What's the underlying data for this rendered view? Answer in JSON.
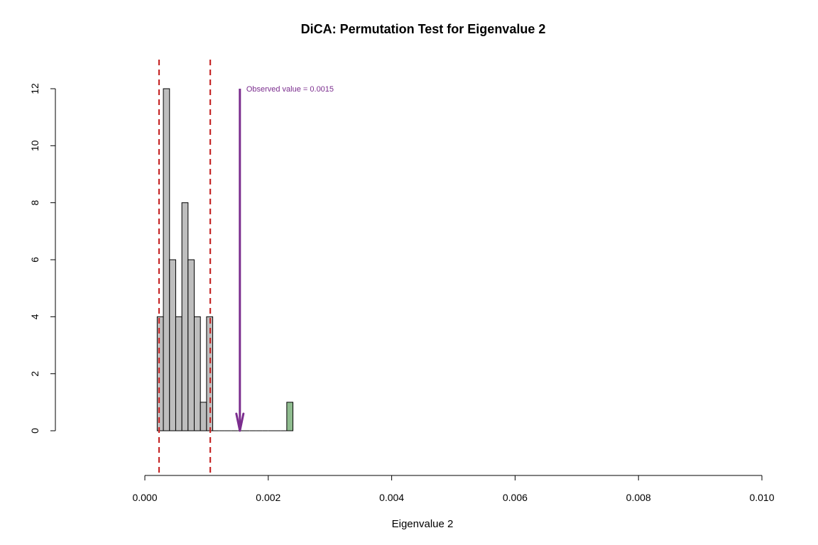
{
  "chart_data": {
    "type": "bar",
    "title": "DiCA: Permutation Test for Eigenvalue 2",
    "xlabel": "Eigenvalue 2",
    "ylabel": "",
    "xlim": [
      0,
      0.01
    ],
    "ylim": [
      0,
      12
    ],
    "x_ticks": [
      "0.000",
      "0.002",
      "0.004",
      "0.006",
      "0.008",
      "0.010"
    ],
    "y_ticks": [
      "0",
      "2",
      "4",
      "6",
      "8",
      "10",
      "12"
    ],
    "bin_width": 0.0001,
    "bins": [
      {
        "x0": 0.0002,
        "x1": 0.0003,
        "count": 4
      },
      {
        "x0": 0.0003,
        "x1": 0.0004,
        "count": 12
      },
      {
        "x0": 0.0004,
        "x1": 0.0005,
        "count": 6
      },
      {
        "x0": 0.0005,
        "x1": 0.0006,
        "count": 4
      },
      {
        "x0": 0.0006,
        "x1": 0.0007,
        "count": 8
      },
      {
        "x0": 0.0007,
        "x1": 0.0008,
        "count": 6
      },
      {
        "x0": 0.0008,
        "x1": 0.0009,
        "count": 4
      },
      {
        "x0": 0.0009,
        "x1": 0.001,
        "count": 1
      },
      {
        "x0": 0.001,
        "x1": 0.0011,
        "count": 4
      },
      {
        "x0": 0.0011,
        "x1": 0.0012,
        "count": 0
      },
      {
        "x0": 0.0012,
        "x1": 0.0013,
        "count": 0
      },
      {
        "x0": 0.0013,
        "x1": 0.0014,
        "count": 0
      },
      {
        "x0": 0.0014,
        "x1": 0.0015,
        "count": 0
      },
      {
        "x0": 0.0015,
        "x1": 0.0016,
        "count": 0
      },
      {
        "x0": 0.0016,
        "x1": 0.0017,
        "count": 0
      },
      {
        "x0": 0.0017,
        "x1": 0.0018,
        "count": 0
      },
      {
        "x0": 0.0018,
        "x1": 0.0019,
        "count": 0
      },
      {
        "x0": 0.0019,
        "x1": 0.002,
        "count": 0
      },
      {
        "x0": 0.002,
        "x1": 0.0021,
        "count": 0
      },
      {
        "x0": 0.0021,
        "x1": 0.0022,
        "count": 0
      },
      {
        "x0": 0.0022,
        "x1": 0.0023,
        "count": 0
      },
      {
        "x0": 0.0023,
        "x1": 0.0024,
        "count": 1,
        "highlight": true
      }
    ],
    "critical_lines": [
      0.00023,
      0.00106
    ],
    "observed": {
      "value": 0.00154,
      "label": "Observed value = 0.0015"
    },
    "colors": {
      "bar": "#bebebe",
      "bar_highlight": "#8fbc8f",
      "critical_line": "#c62828",
      "observed": "#7b2d8e"
    },
    "grid": false,
    "legend": "none"
  }
}
